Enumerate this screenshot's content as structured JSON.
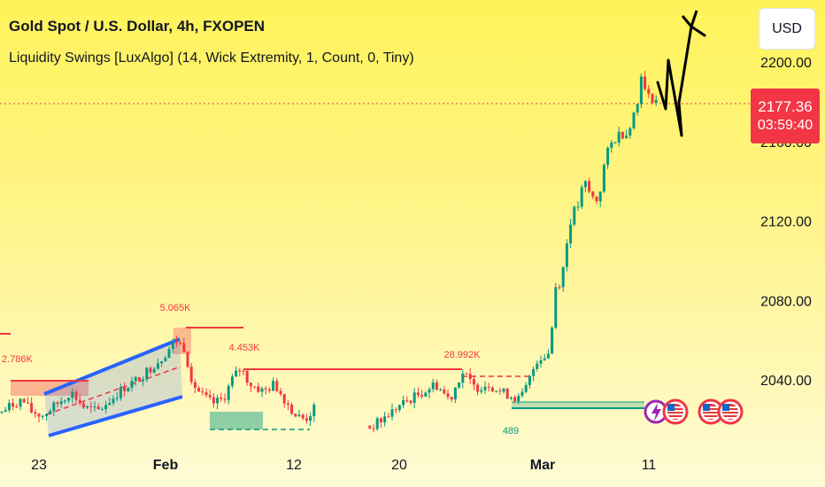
{
  "header": {
    "title": "Gold Spot / U.S. Dollar, 4h, FXOPEN",
    "indicator": "Liquidity Swings [LuxAlgo] (14, Wick Extremity, 1, Count, 0, Tiny)"
  },
  "currency_button": "USD",
  "price_tag": {
    "price": "2177.36",
    "countdown": "03:59:40"
  },
  "colors": {
    "up": "#089981",
    "down": "#f23645",
    "channel": "#2962ff",
    "liquidity_high": "#f23645",
    "liquidity_low": "#089981"
  },
  "chart_data": {
    "type": "candlestick",
    "symbol": "XAUUSD",
    "timeframe": "4h",
    "x_ticks": [
      {
        "label": "23",
        "bold": false
      },
      {
        "label": "Feb",
        "bold": true
      },
      {
        "label": "12",
        "bold": false
      },
      {
        "label": "20",
        "bold": false
      },
      {
        "label": "Mar",
        "bold": true
      },
      {
        "label": "11",
        "bold": false
      }
    ],
    "y_ticks": [
      "2200.00",
      "2160.00",
      "2120.00",
      "2080.00",
      "2040.00"
    ],
    "ylim": [
      2005,
      2215
    ],
    "last_price": 2177.36,
    "price_path": [
      [
        0,
        2023
      ],
      [
        12,
        2027
      ],
      [
        25,
        2030
      ],
      [
        35,
        2024
      ],
      [
        48,
        2022
      ],
      [
        65,
        2028
      ],
      [
        80,
        2034
      ],
      [
        95,
        2026
      ],
      [
        110,
        2024
      ],
      [
        125,
        2030
      ],
      [
        140,
        2036
      ],
      [
        155,
        2040
      ],
      [
        170,
        2046
      ],
      [
        185,
        2052
      ],
      [
        198,
        2060
      ],
      [
        208,
        2056
      ],
      [
        218,
        2038
      ],
      [
        228,
        2032
      ],
      [
        240,
        2028
      ],
      [
        252,
        2030
      ],
      [
        262,
        2040
      ],
      [
        272,
        2046
      ],
      [
        282,
        2038
      ],
      [
        298,
        2034
      ],
      [
        310,
        2038
      ],
      [
        322,
        2030
      ],
      [
        334,
        2022
      ],
      [
        345,
        2020
      ],
      [
        356,
        2026
      ],
      [
        418,
        2016
      ],
      [
        432,
        2020
      ],
      [
        448,
        2026
      ],
      [
        462,
        2030
      ],
      [
        478,
        2034
      ],
      [
        492,
        2038
      ],
      [
        508,
        2030
      ],
      [
        522,
        2044
      ],
      [
        536,
        2036
      ],
      [
        552,
        2038
      ],
      [
        565,
        2034
      ],
      [
        578,
        2032
      ],
      [
        588,
        2030
      ],
      [
        598,
        2040
      ],
      [
        606,
        2050
      ],
      [
        614,
        2052
      ],
      [
        622,
        2054
      ],
      [
        626,
        2086
      ],
      [
        634,
        2090
      ],
      [
        640,
        2108
      ],
      [
        646,
        2124
      ],
      [
        652,
        2126
      ],
      [
        660,
        2140
      ],
      [
        668,
        2132
      ],
      [
        676,
        2130
      ],
      [
        684,
        2152
      ],
      [
        692,
        2160
      ],
      [
        700,
        2164
      ],
      [
        708,
        2164
      ],
      [
        714,
        2172
      ],
      [
        720,
        2178
      ],
      [
        724,
        2196
      ],
      [
        728,
        2186
      ],
      [
        732,
        2182
      ],
      [
        738,
        2182
      ],
      [
        744,
        2180
      ]
    ],
    "liquidity_levels": [
      {
        "label": "2.786K",
        "price": 2040
      },
      {
        "label": "5.065K",
        "price": 2064
      },
      {
        "label": "4.453K",
        "price": 2045
      },
      {
        "label": "28.992K",
        "price": 2040
      },
      {
        "label": "489",
        "price": 2026
      }
    ]
  }
}
